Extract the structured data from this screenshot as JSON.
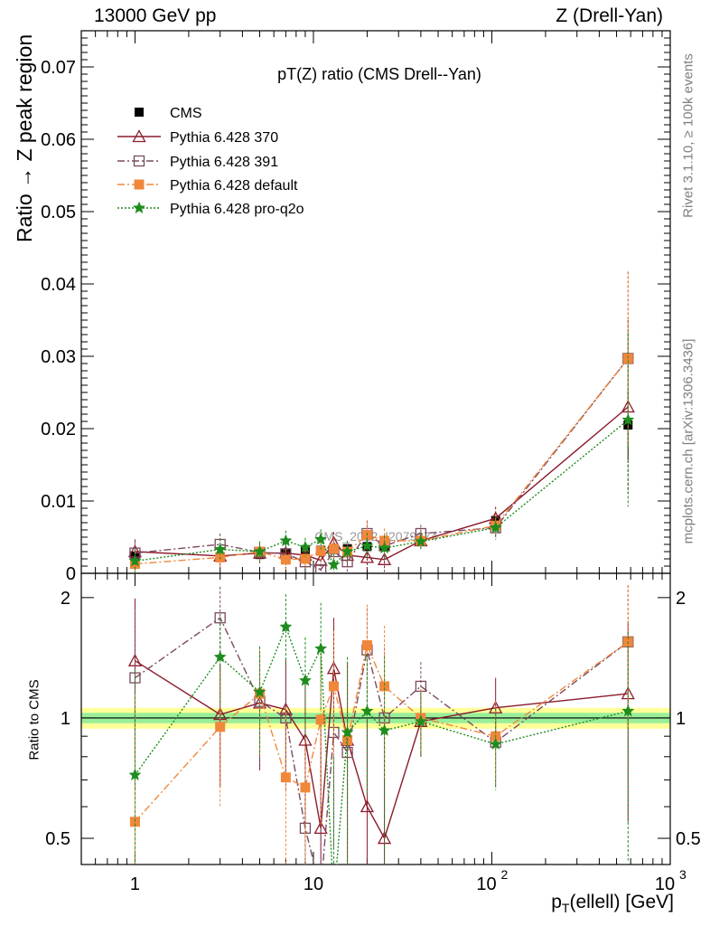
{
  "header": {
    "left": "13000 GeV pp",
    "right": "Z (Drell-Yan)"
  },
  "side_labels": {
    "rivet": "Rivet 3.1.10, ≥ 100k events",
    "mcplots": "mcplots.cern.ch [arXiv:1306.3436]"
  },
  "watermark": "CMS_2022_I2079374",
  "chart_data": [
    {
      "type": "line",
      "title": "pT(Z) ratio (CMS Drell--Yan)",
      "ylabel": "Ratio → Z peak region",
      "xlabel": "p_T(ellell) [GeV]",
      "xscale": "log",
      "xlim": [
        0.5,
        1000
      ],
      "ylim": [
        0,
        0.075
      ],
      "yticks": [
        "0",
        "0.01",
        "0.02",
        "0.03",
        "0.04",
        "0.05",
        "0.06",
        "0.07"
      ],
      "xticks": [
        "1",
        "10",
        "10^2",
        "10^3"
      ],
      "legend_position": "top-left",
      "legend": [
        "CMS",
        "Pythia 6.428 370",
        "Pythia 6.428 391",
        "Pythia 6.428 default",
        "Pythia 6.428 pro-q2o"
      ],
      "x": [
        1,
        3,
        5,
        7,
        9,
        11,
        13,
        15.5,
        20,
        25,
        40,
        105,
        580
      ],
      "series": [
        {
          "name": "CMS",
          "color": "#000000",
          "marker": "filled-square",
          "values": [
            0.0024,
            0.0023,
            0.0026,
            0.0027,
            0.003,
            0.0032,
            0.0033,
            0.0034,
            0.0037,
            0.0038,
            0.0045,
            0.0073,
            0.0205
          ]
        },
        {
          "name": "Pythia 6.428 370",
          "color": "#8b1a2b",
          "marker": "open-triangle",
          "dash": "",
          "values": [
            0.003,
            0.0024,
            0.0028,
            0.0028,
            0.0025,
            0.0018,
            0.0042,
            0.0025,
            0.0022,
            0.0019,
            0.0045,
            0.0076,
            0.023
          ]
        },
        {
          "name": "Pythia 6.428 391",
          "color": "#7b4a5e",
          "marker": "open-square",
          "dash": "8,3,2,3",
          "values": [
            0.0028,
            0.004,
            0.0029,
            0.0027,
            0.0016,
            0.0005,
            0.003,
            0.0016,
            0.0055,
            0.0038,
            0.0055,
            0.0063,
            0.0297
          ]
        },
        {
          "name": "Pythia 6.428 default",
          "color": "#f0873a",
          "marker": "filled-square",
          "dash": "8,3,2,3",
          "values": [
            0.0013,
            0.0022,
            0.003,
            0.0019,
            0.002,
            0.0031,
            0.0034,
            0.003,
            0.0053,
            0.0045,
            0.0045,
            0.0066,
            0.0297
          ]
        },
        {
          "name": "Pythia 6.428 pro-q2o",
          "color": "#1e8c1e",
          "marker": "star",
          "dash": "2,2",
          "values": [
            0.0017,
            0.0033,
            0.003,
            0.0045,
            0.0036,
            0.0047,
            0.0012,
            0.003,
            0.0038,
            0.0035,
            0.0044,
            0.0063,
            0.0212
          ]
        }
      ]
    },
    {
      "type": "line",
      "ylabel": "Ratio to CMS",
      "xlabel": "p_T(ellell) [GeV]",
      "xscale": "log",
      "yscale": "log",
      "xlim": [
        0.5,
        1000
      ],
      "ylim": [
        0.43,
        2.3
      ],
      "yticks": [
        "0.5",
        "1",
        "2"
      ],
      "band_yellow": [
        0.94,
        1.06
      ],
      "band_green": [
        0.97,
        1.03
      ],
      "x": [
        1,
        3,
        5,
        7,
        9,
        11,
        13,
        15.5,
        20,
        25,
        40,
        105,
        580
      ],
      "series": [
        {
          "name": "Pythia 6.428 370",
          "values": [
            1.39,
            1.02,
            1.09,
            1.05,
            0.88,
            0.53,
            1.33,
            0.88,
            0.6,
            0.5,
            0.98,
            1.06,
            1.15
          ]
        },
        {
          "name": "Pythia 6.428 391",
          "values": [
            1.26,
            1.78,
            1.1,
            1.0,
            0.53,
            0.37,
            0.92,
            0.82,
            1.48,
            1.0,
            1.2,
            0.87,
            1.55
          ]
        },
        {
          "name": "Pythia 6.428 default",
          "values": [
            0.55,
            0.95,
            1.15,
            0.71,
            0.67,
            0.99,
            1.2,
            0.88,
            1.52,
            1.2,
            1.0,
            0.9,
            1.55
          ]
        },
        {
          "name": "Pythia 6.428 pro-q2o",
          "values": [
            0.72,
            1.42,
            1.16,
            1.69,
            1.24,
            1.49,
            0.35,
            0.92,
            1.04,
            0.93,
            0.98,
            0.86,
            1.04
          ]
        }
      ]
    }
  ]
}
